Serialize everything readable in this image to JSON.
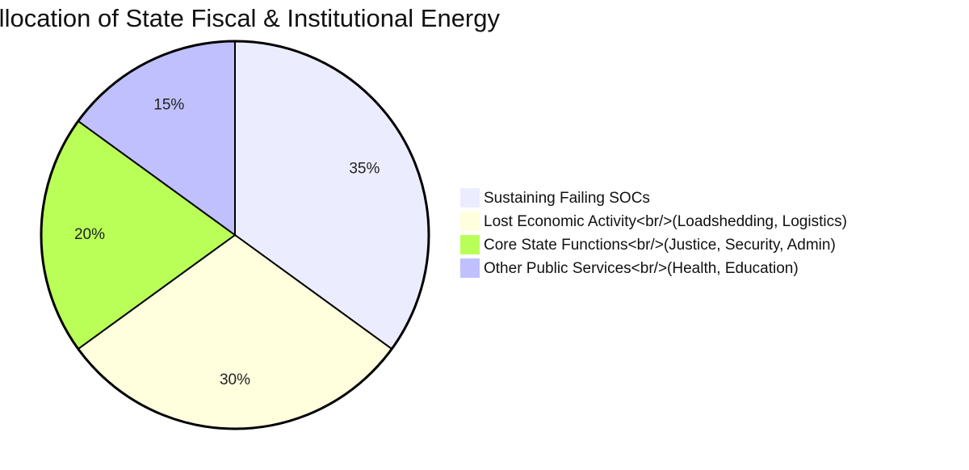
{
  "chart_data": {
    "type": "pie",
    "title": "Allocation of State Fiscal & Institutional Energy",
    "categories": [
      "Sustaining Failing SOCs",
      "Lost Economic Activity<br/>(Loadshedding, Logistics)",
      "Core State Functions<br/>(Justice, Security, Admin)",
      "Other Public Services<br/>(Health, Education)"
    ],
    "values": [
      35,
      30,
      20,
      15
    ],
    "labels": [
      "35%",
      "30%",
      "20%",
      "15%"
    ],
    "colors": [
      "#ECECFF",
      "#FFFFDE",
      "#B9FF57",
      "#C0C0FF"
    ],
    "legend_position": "right"
  }
}
